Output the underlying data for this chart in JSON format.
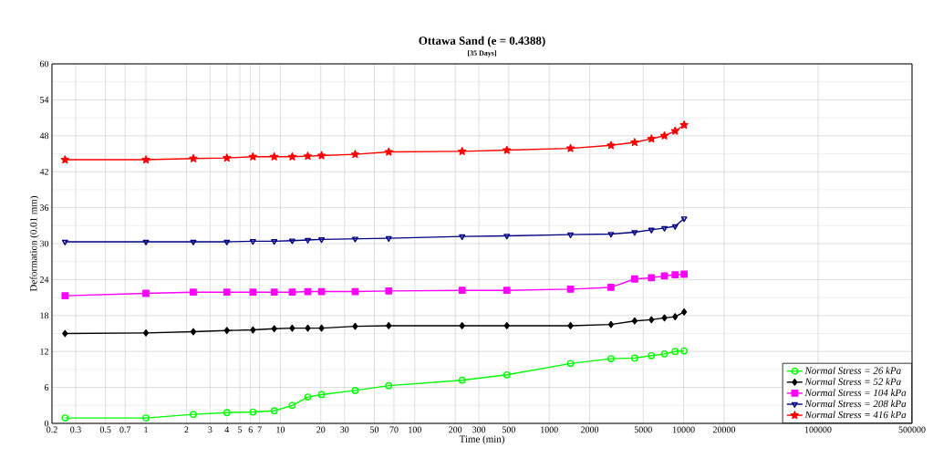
{
  "chart_data": {
    "type": "line",
    "title": "Ottawa Sand (e = 0.4388)",
    "subtitle": "[35 Days]",
    "xlabel": "Time (min)",
    "ylabel": "Deformation (0.01 mm)",
    "log": "x",
    "grid": true,
    "legend": "bottom right",
    "xlim": [
      0.2,
      500000
    ],
    "xticks": [
      0.2,
      0.3,
      0.5,
      0.7,
      1,
      2,
      3,
      4,
      5,
      6,
      7,
      10,
      20,
      30,
      50,
      70,
      100,
      200,
      300,
      500,
      1000,
      2000,
      5000,
      10000,
      20000,
      100000,
      500000
    ],
    "ylim": [
      0,
      60
    ],
    "yticks": [
      0,
      6,
      12,
      18,
      24,
      30,
      36,
      42,
      48,
      54,
      60
    ],
    "x": [
      0.25,
      1,
      2.25,
      4,
      6.25,
      9,
      12.25,
      16,
      20.25,
      36,
      64,
      225,
      484,
      1440,
      2880,
      4320,
      5760,
      7200,
      8640,
      10080
    ],
    "series": [
      {
        "name": "Normal Stress = 26 kPa",
        "color": "#00ff00",
        "marker": "circle",
        "values": [
          0.9,
          0.9,
          1.5,
          1.8,
          1.9,
          2.1,
          3.0,
          4.4,
          4.8,
          5.5,
          6.3,
          7.2,
          8.1,
          10.0,
          10.8,
          10.9,
          11.3,
          11.6,
          12.0,
          12.1
        ]
      },
      {
        "name": "Normal Stress = 52 kPa",
        "color": "#000000",
        "marker": "diamond",
        "values": [
          15.0,
          15.1,
          15.3,
          15.5,
          15.6,
          15.8,
          15.9,
          15.9,
          15.9,
          16.2,
          16.3,
          16.3,
          16.3,
          16.3,
          16.5,
          17.1,
          17.3,
          17.6,
          17.8,
          18.6
        ]
      },
      {
        "name": "Normal Stress = 104 kPa",
        "color": "#ff00ff",
        "marker": "square",
        "values": [
          21.3,
          21.7,
          21.9,
          21.9,
          21.9,
          21.9,
          21.9,
          22.0,
          22.0,
          22.0,
          22.1,
          22.2,
          22.2,
          22.4,
          22.7,
          24.1,
          24.3,
          24.6,
          24.8,
          24.9
        ]
      },
      {
        "name": "Normal Stress = 208 kPa",
        "color": "#000080",
        "marker": "triangle",
        "values": [
          30.3,
          30.3,
          30.3,
          30.3,
          30.4,
          30.4,
          30.5,
          30.6,
          30.7,
          30.8,
          30.9,
          31.2,
          31.3,
          31.5,
          31.6,
          31.9,
          32.3,
          32.6,
          32.9,
          34.2
        ]
      },
      {
        "name": "Normal Stress = 416 kPa",
        "color": "#ff0000",
        "marker": "star",
        "values": [
          44.0,
          44.0,
          44.2,
          44.3,
          44.5,
          44.5,
          44.5,
          44.6,
          44.7,
          44.9,
          45.3,
          45.4,
          45.6,
          45.9,
          46.4,
          46.9,
          47.5,
          48.0,
          48.8,
          49.8
        ]
      }
    ]
  }
}
